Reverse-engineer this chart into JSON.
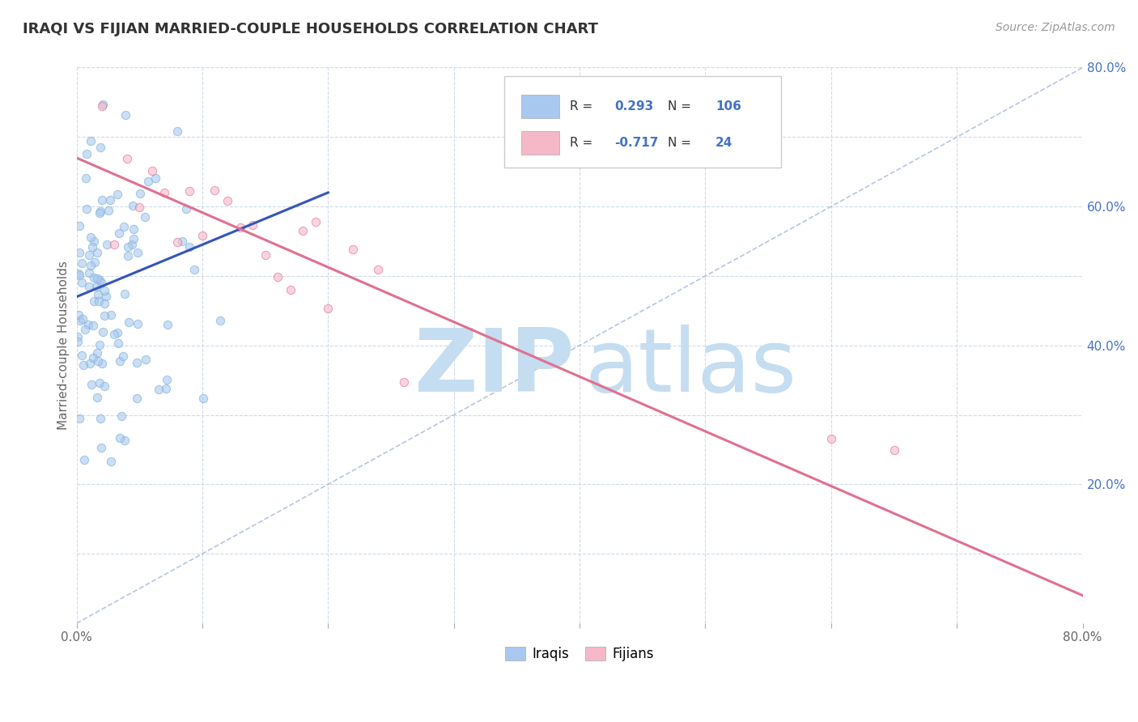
{
  "title": "IRAQI VS FIJIAN MARRIED-COUPLE HOUSEHOLDS CORRELATION CHART",
  "source_text": "Source: ZipAtlas.com",
  "ylabel": "Married-couple Households",
  "xlim": [
    0.0,
    0.8
  ],
  "ylim": [
    0.0,
    0.8
  ],
  "xtick_major_labels": [
    "0.0%",
    "80.0%"
  ],
  "xtick_major_vals": [
    0.0,
    0.8
  ],
  "xtick_minor_vals": [
    0.0,
    0.1,
    0.2,
    0.3,
    0.4,
    0.5,
    0.6,
    0.7,
    0.8
  ],
  "ytick_right_labels": [
    "80.0%",
    "60.0%",
    "40.0%",
    "20.0%"
  ],
  "ytick_right_vals": [
    0.8,
    0.6,
    0.4,
    0.2
  ],
  "ytick_minor_vals": [
    0.0,
    0.1,
    0.2,
    0.3,
    0.4,
    0.5,
    0.6,
    0.7,
    0.8
  ],
  "R_iraqi": 0.293,
  "N_iraqi": 106,
  "R_fijian": -0.717,
  "N_fijian": 24,
  "iraqi_color": "#a8c8f0",
  "iraqi_edge_color": "#7bafd4",
  "fijian_color": "#f5b8c8",
  "fijian_edge_color": "#e07090",
  "trend_iraqi_color": "#3355bb",
  "trend_fijian_color": "#e07090",
  "diagonal_color": "#aabbdd",
  "watermark_zip_color": "#c5ddf0",
  "watermark_atlas_color": "#c5ddf0",
  "legend_box_iraqi": "#a8c8f0",
  "legend_box_fijian": "#f5b8c8",
  "legend_text_color": "#333333",
  "legend_value_color": "#4472c4",
  "background_color": "#ffffff",
  "grid_color": "#c8d8e8",
  "axis_label_color": "#4472c4",
  "title_color": "#333333",
  "source_color": "#999999",
  "iraqi_trend_x0": 0.0,
  "iraqi_trend_x1": 0.2,
  "iraqi_trend_y0": 0.47,
  "iraqi_trend_y1": 0.62,
  "fijian_trend_x0": 0.0,
  "fijian_trend_x1": 0.8,
  "fijian_trend_y0": 0.67,
  "fijian_trend_y1": 0.04,
  "dot_size": 55,
  "dot_alpha": 0.6,
  "dot_linewidth": 0.8
}
